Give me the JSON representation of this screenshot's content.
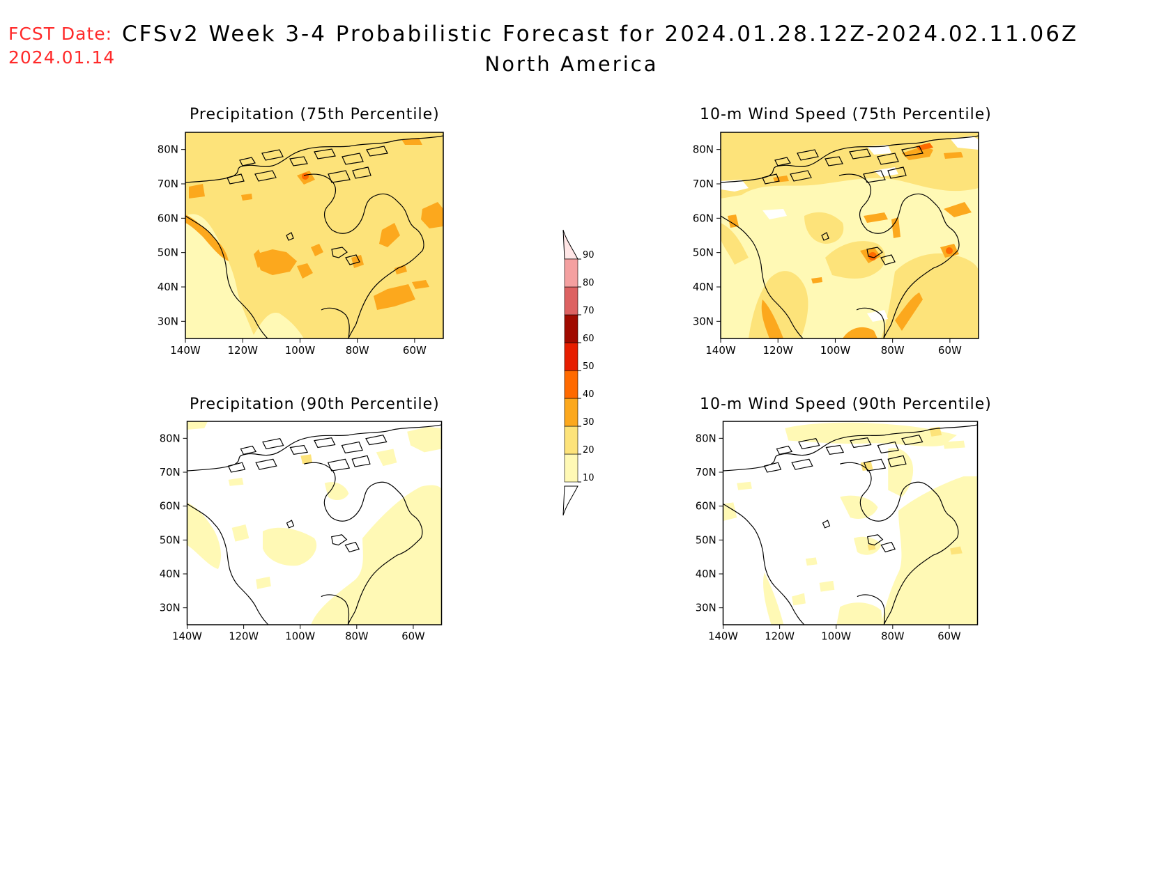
{
  "header": {
    "fcst_label": "FCST Date:",
    "fcst_date": "2024.01.14",
    "title": "CFSv2 Week 3-4 Probabilistic Forecast for 2024.01.28.12Z-2024.02.11.06Z",
    "subtitle": "North America"
  },
  "axes": {
    "lat_ticks": [
      "80N",
      "70N",
      "60N",
      "50N",
      "40N",
      "30N"
    ],
    "lat_values": [
      80,
      70,
      60,
      50,
      40,
      30
    ],
    "lon_ticks": [
      "140W",
      "120W",
      "100W",
      "80W",
      "60W"
    ],
    "lon_values": [
      -140,
      -120,
      -100,
      -80,
      -60
    ],
    "lat_range": [
      25,
      85
    ],
    "lon_range": [
      -140,
      -50
    ]
  },
  "panels": [
    {
      "id": "precip-75",
      "title": "Precipitation (75th Percentile)"
    },
    {
      "id": "wind-75",
      "title": "10-m Wind Speed (75th Percentile)"
    },
    {
      "id": "precip-90",
      "title": "Precipitation (90th Percentile)"
    },
    {
      "id": "wind-90",
      "title": "10-m Wind Speed (90th Percentile)"
    }
  ],
  "colorbar": {
    "levels": [
      10,
      20,
      30,
      40,
      50,
      60,
      70,
      80,
      90
    ],
    "labels": [
      "10",
      "20",
      "30",
      "40",
      "50",
      "60",
      "70",
      "80",
      "90"
    ],
    "colors": [
      "#fff9b5",
      "#fde37a",
      "#fca81d",
      "#ff6a00",
      "#e61e00",
      "#a00a00",
      "#dd6262",
      "#f4a0a0",
      "#ffe6e6"
    ]
  }
}
